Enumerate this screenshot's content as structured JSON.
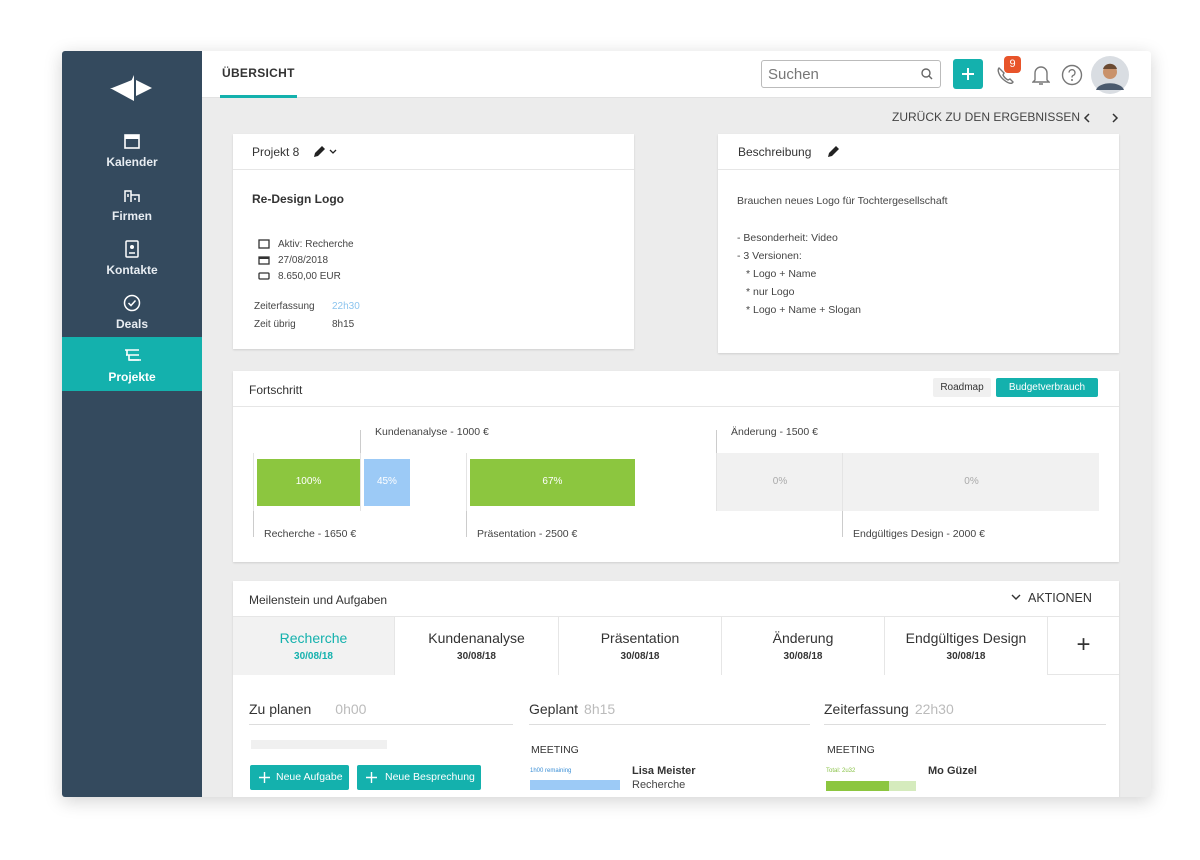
{
  "sidebar": {
    "nav": [
      "Kalender",
      "Firmen",
      "Kontakte",
      "Deals",
      "Projekte"
    ]
  },
  "topbar": {
    "tab": "ÜBERSICHT",
    "search_placeholder": "Suchen",
    "notification_count": 9
  },
  "back_link": "ZURÜCK ZU DEN ERGEBNISSEN",
  "project_card": {
    "title": "Projekt 8",
    "name": "Re-Design Logo",
    "status": "Aktiv: Recherche",
    "date": "27/08/2018",
    "amount": "8.650,00 EUR",
    "time_tracking_label": "Zeiterfassung",
    "time_tracking_value": "22h30",
    "time_left_label": "Zeit übrig",
    "time_left_value": "8h15"
  },
  "description_card": {
    "title": "Beschreibung",
    "intro": "Brauchen neues Logo für Tochtergesellschaft",
    "items": [
      "- Besonderheit: Video",
      "- 3 Versionen:"
    ],
    "subitems": [
      "* Logo + Name",
      "* nur Logo",
      "* Logo + Name + Slogan"
    ]
  },
  "progress": {
    "title": "Fortschritt",
    "buttons": [
      "Roadmap",
      "Budgetverbrauch"
    ],
    "segments": [
      {
        "label": "Recherche - 1650 €",
        "value": 100,
        "value_label": "100%"
      },
      {
        "label": "Kundenanalyse - 1000 €",
        "value": 45,
        "value_label": "45%"
      },
      {
        "label": "Präsentation - 2500 €",
        "value": 67,
        "value_label": "67%"
      },
      {
        "label": "Änderung - 1500 €",
        "value": 0,
        "value_label": "0%"
      },
      {
        "label": "Endgültiges Design - 2000 €",
        "value": 0,
        "value_label": "0%"
      }
    ]
  },
  "milestones": {
    "title": "Meilenstein und Aufgaben",
    "actions": "AKTIONEN",
    "tabs": [
      {
        "name": "Recherche",
        "date": "30/08/18"
      },
      {
        "name": "Kundenanalyse",
        "date": "30/08/18"
      },
      {
        "name": "Präsentation",
        "date": "30/08/18"
      },
      {
        "name": "Änderung",
        "date": "30/08/18"
      },
      {
        "name": "Endgültiges Design",
        "date": "30/08/18"
      }
    ],
    "add_tab": "+",
    "columns": [
      {
        "title": "Zu planen",
        "value": "0h00"
      },
      {
        "title": "Geplant",
        "value": "8h15"
      },
      {
        "title": "Zeiterfassung",
        "value": "22h30"
      }
    ],
    "buttons": [
      "Neue Aufgabe",
      "Neue Besprechung"
    ],
    "planned": {
      "type": "MEETING",
      "note": "1h00 remaining",
      "person": "Lisa Meister",
      "task": "Recherche"
    },
    "tracked": {
      "type": "MEETING",
      "note": "Total: 2u32",
      "person": "Mo Güzel"
    }
  }
}
